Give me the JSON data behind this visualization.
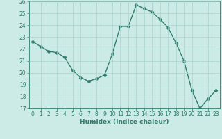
{
  "x": [
    0,
    1,
    2,
    3,
    4,
    5,
    6,
    7,
    8,
    9,
    10,
    11,
    12,
    13,
    14,
    15,
    16,
    17,
    18,
    19,
    20,
    21,
    22,
    23
  ],
  "y": [
    22.6,
    22.2,
    21.8,
    21.7,
    21.3,
    20.2,
    19.6,
    19.3,
    19.5,
    19.8,
    21.6,
    23.9,
    23.9,
    25.7,
    25.4,
    25.1,
    24.5,
    23.8,
    22.5,
    21.0,
    18.5,
    17.0,
    17.8,
    18.5
  ],
  "line_color": "#2e7d6e",
  "marker": "D",
  "marker_size": 2.5,
  "line_width": 1.0,
  "bg_color": "#cceae6",
  "grid_color": "#aad4ce",
  "xlabel": "Humidex (Indice chaleur)",
  "ylim": [
    17,
    26
  ],
  "xlim": [
    -0.5,
    23.5
  ],
  "yticks": [
    17,
    18,
    19,
    20,
    21,
    22,
    23,
    24,
    25,
    26
  ],
  "xticks": [
    0,
    1,
    2,
    3,
    4,
    5,
    6,
    7,
    8,
    9,
    10,
    11,
    12,
    13,
    14,
    15,
    16,
    17,
    18,
    19,
    20,
    21,
    22,
    23
  ],
  "tick_label_fontsize": 5.5,
  "xlabel_fontsize": 6.5
}
